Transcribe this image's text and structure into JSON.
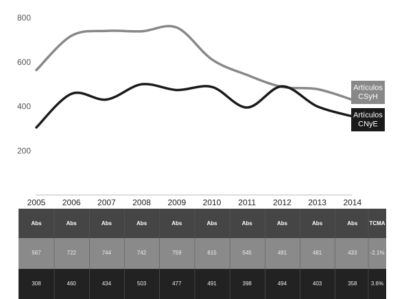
{
  "chart_data": {
    "type": "line",
    "x": [
      2005,
      2006,
      2007,
      2008,
      2009,
      2010,
      2011,
      2012,
      2013,
      2014
    ],
    "series": [
      {
        "name": "Artículos CSyH",
        "color": "#888888",
        "values": [
          567,
          722,
          744,
          742,
          759,
          615,
          545,
          491,
          481,
          433
        ]
      },
      {
        "name": "Artículos CNyE",
        "color": "#1a1a1a",
        "values": [
          308,
          460,
          434,
          503,
          477,
          491,
          398,
          494,
          403,
          358
        ]
      }
    ],
    "ylim": [
      0,
      800
    ],
    "yticks": [
      200,
      400,
      600,
      800
    ],
    "table": {
      "header": [
        "Abs",
        "Abs",
        "Abs",
        "Abs",
        "Abs",
        "Abs",
        "Abs",
        "Abs",
        "Abs",
        "Abs",
        "TCMA"
      ],
      "tcma": [
        "-2.1%",
        "3.6%"
      ]
    }
  }
}
